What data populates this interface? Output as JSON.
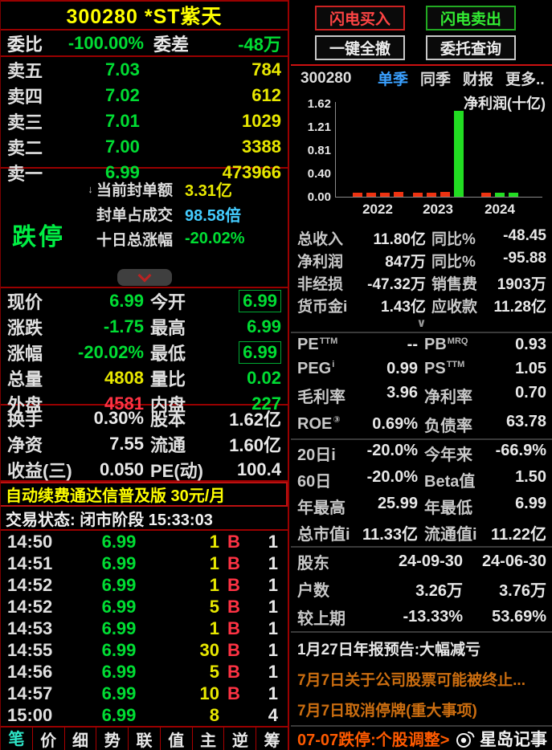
{
  "window": {
    "title": "300280 *ST紫天"
  },
  "colors": {
    "green": "#00dd33",
    "yellow": "#e8e800",
    "red": "#ff3344",
    "cyan": "#44ccff",
    "white": "#e8e8e8",
    "orange": "#cc6e10",
    "border_red": "#990000",
    "tab_blue": "#3aa0ff",
    "limit_green": "#00ee44",
    "bar_red": "#ee3311",
    "bar_green": "#22dd22"
  },
  "left": {
    "weibi": {
      "l1": "委比",
      "v1": "-100.00%",
      "l2": "委差",
      "v2": "-48万"
    },
    "asks": [
      {
        "label": "卖五",
        "price": "7.03",
        "vol": "784"
      },
      {
        "label": "卖四",
        "price": "7.02",
        "vol": "612"
      },
      {
        "label": "卖三",
        "price": "7.01",
        "vol": "1029"
      },
      {
        "label": "卖二",
        "price": "7.00",
        "vol": "3388"
      },
      {
        "label": "卖一",
        "price": "6.99",
        "vol": "473966"
      }
    ],
    "limit_down": {
      "status": "跌停",
      "rows": [
        {
          "icon": "down-arrow",
          "label": "当前封单额",
          "value": "3.31亿",
          "color": "yellow"
        },
        {
          "icon": "",
          "label": "封单占成交",
          "value": "98.58倍",
          "color": "cyan"
        },
        {
          "icon": "",
          "label": "十日总涨幅",
          "value": "-20.02%",
          "color": "green"
        }
      ]
    },
    "quote_rows": [
      {
        "l1": "现价",
        "v1": "6.99",
        "c1": "green",
        "l2": "今开",
        "v2": "6.99",
        "c2": "green",
        "box2": true
      },
      {
        "l1": "涨跌",
        "v1": "-1.75",
        "c1": "green",
        "l2": "最高",
        "v2": "6.99",
        "c2": "green",
        "box2": false
      },
      {
        "l1": "涨幅",
        "v1": "-20.02%",
        "c1": "green",
        "l2": "最低",
        "v2": "6.99",
        "c2": "green",
        "box2": true
      },
      {
        "l1": "总量",
        "v1": "4808",
        "c1": "yellow",
        "l2": "量比",
        "v2": "0.02",
        "c2": "green",
        "box2": false
      },
      {
        "l1": "外盘",
        "v1": "4581",
        "c1": "red",
        "l2": "内盘",
        "v2": "227",
        "c2": "green",
        "box2": false
      }
    ],
    "info_rows": [
      {
        "l1": "换手",
        "v1": "0.30%",
        "l2": "股本",
        "v2": "1.62亿"
      },
      {
        "l1": "净资",
        "v1": "7.55",
        "l2": "流通",
        "v2": "1.60亿"
      },
      {
        "l1": "收益(三)",
        "v1": "0.050",
        "l2": "PE(动)",
        "v2": "100.4"
      }
    ],
    "banner": "自动续费通达信普及版  30元/月",
    "trade_status": "交易状态: 闭市阶段 15:33:03",
    "trades": [
      {
        "time": "14:50",
        "price": "6.99",
        "vol": "1",
        "side": "B",
        "count": "1"
      },
      {
        "time": "14:51",
        "price": "6.99",
        "vol": "1",
        "side": "B",
        "count": "1"
      },
      {
        "time": "14:52",
        "price": "6.99",
        "vol": "1",
        "side": "B",
        "count": "1"
      },
      {
        "time": "14:52",
        "price": "6.99",
        "vol": "5",
        "side": "B",
        "count": "1"
      },
      {
        "time": "14:53",
        "price": "6.99",
        "vol": "1",
        "side": "B",
        "count": "1"
      },
      {
        "time": "14:55",
        "price": "6.99",
        "vol": "30",
        "side": "B",
        "count": "1"
      },
      {
        "time": "14:56",
        "price": "6.99",
        "vol": "5",
        "side": "B",
        "count": "1"
      },
      {
        "time": "14:57",
        "price": "6.99",
        "vol": "10",
        "side": "B",
        "count": "1"
      },
      {
        "time": "15:00",
        "price": "6.99",
        "vol": "8",
        "side": "",
        "count": "4"
      }
    ],
    "bottom_tabs": [
      {
        "label": "笔",
        "active": true
      },
      {
        "label": "价",
        "active": false
      },
      {
        "label": "细",
        "active": false
      },
      {
        "label": "势",
        "active": false
      },
      {
        "label": "联",
        "active": false
      },
      {
        "label": "值",
        "active": false
      },
      {
        "label": "主",
        "active": false
      },
      {
        "label": "逆",
        "active": false
      },
      {
        "label": "筹",
        "active": false
      }
    ]
  },
  "right": {
    "buttons": [
      {
        "label": "闪电买入",
        "style": "red"
      },
      {
        "label": "闪电卖出",
        "style": "green"
      },
      {
        "label": "一键全撤",
        "style": "gray"
      },
      {
        "label": "委托查询",
        "style": "gray"
      }
    ],
    "header": {
      "code": "300280",
      "tabs": [
        {
          "label": "单季",
          "active": true
        },
        {
          "label": "同季",
          "active": false
        },
        {
          "label": "财报",
          "active": false
        },
        {
          "label": "更多..",
          "active": false
        }
      ]
    },
    "chart_data": {
      "type": "bar",
      "title": "净利润(十亿)",
      "ylabel_ticks": [
        "1.62",
        "1.21",
        "0.81",
        "0.40",
        "0.00"
      ],
      "ylim": [
        0,
        1.62
      ],
      "categories": [
        "2022",
        "2023",
        "2024"
      ],
      "series": [
        {
          "name": "2022",
          "values": [
            0.07,
            0.07,
            0.07,
            0.08
          ],
          "colors": [
            "red",
            "red",
            "red",
            "red"
          ]
        },
        {
          "name": "2023",
          "values": [
            0.07,
            0.07,
            0.08,
            1.5
          ],
          "colors": [
            "red",
            "red",
            "red",
            "green"
          ]
        },
        {
          "name": "2024",
          "values": [
            0.07,
            0.07,
            0.07
          ],
          "colors": [
            "red",
            "green",
            "green"
          ]
        }
      ],
      "grid": false,
      "legend": null
    },
    "fin_rows": [
      {
        "l1": "总收入",
        "v1": "11.80亿",
        "l2": "同比%",
        "v2": "-48.45"
      },
      {
        "l1": "净利润",
        "v1": "847万",
        "l2": "同比%",
        "v2": "-95.88"
      },
      {
        "l1": "非经损",
        "v1": "-47.32万",
        "l2": "销售费",
        "v2": "1903万"
      },
      {
        "l1": "货币金i",
        "v1": "1.43亿",
        "l2": "应收款",
        "v2": "11.28亿"
      }
    ],
    "expand_more": "∨",
    "valuation_rows": [
      {
        "l1": "PE",
        "s1": "TTM",
        "v1": "--",
        "l2": "PB",
        "s2": "MRQ",
        "v2": "0.93"
      },
      {
        "l1": "PEG",
        "s1": "i",
        "v1": "0.99",
        "l2": "PS",
        "s2": "TTM",
        "v2": "1.05"
      },
      {
        "l1": "毛利率",
        "s1": "",
        "v1": "3.96",
        "l2": "净利率",
        "s2": "",
        "v2": "0.70"
      },
      {
        "l1": "ROE",
        "s1": "③",
        "v1": "0.69%",
        "l2": "负债率",
        "s2": "",
        "v2": "63.78"
      }
    ],
    "perf_rows": [
      {
        "l1": "20日i",
        "v1": "-20.0%",
        "l2": "今年来",
        "v2": "-66.9%"
      },
      {
        "l1": "60日",
        "v1": "-20.0%",
        "l2": "Beta值",
        "v2": "1.50"
      },
      {
        "l1": "年最高",
        "v1": "25.99",
        "l2": "年最低",
        "v2": "6.99"
      },
      {
        "l1": "总市值i",
        "v1": "11.33亿",
        "l2": "流通值i",
        "v2": "11.22亿"
      }
    ],
    "holder_rows": [
      {
        "l": "股东",
        "c2": "24-09-30",
        "c3": "24-06-30"
      },
      {
        "l": "户数",
        "c2": "3.26万",
        "c3": "3.76万"
      },
      {
        "l": "较上期",
        "c2": "-13.33%",
        "c3": "53.69%"
      }
    ],
    "news": [
      {
        "text": "1月27日年报预告:大幅减亏",
        "color": "white"
      },
      {
        "text": "7月7日关于公司股票可能被终止...",
        "color": "orange"
      },
      {
        "text": "7月7日取消停牌(重大事项)",
        "color": "orange"
      }
    ],
    "bottom": {
      "link": "07-07跌停:个股调整>",
      "brand": "星岛记事"
    }
  }
}
